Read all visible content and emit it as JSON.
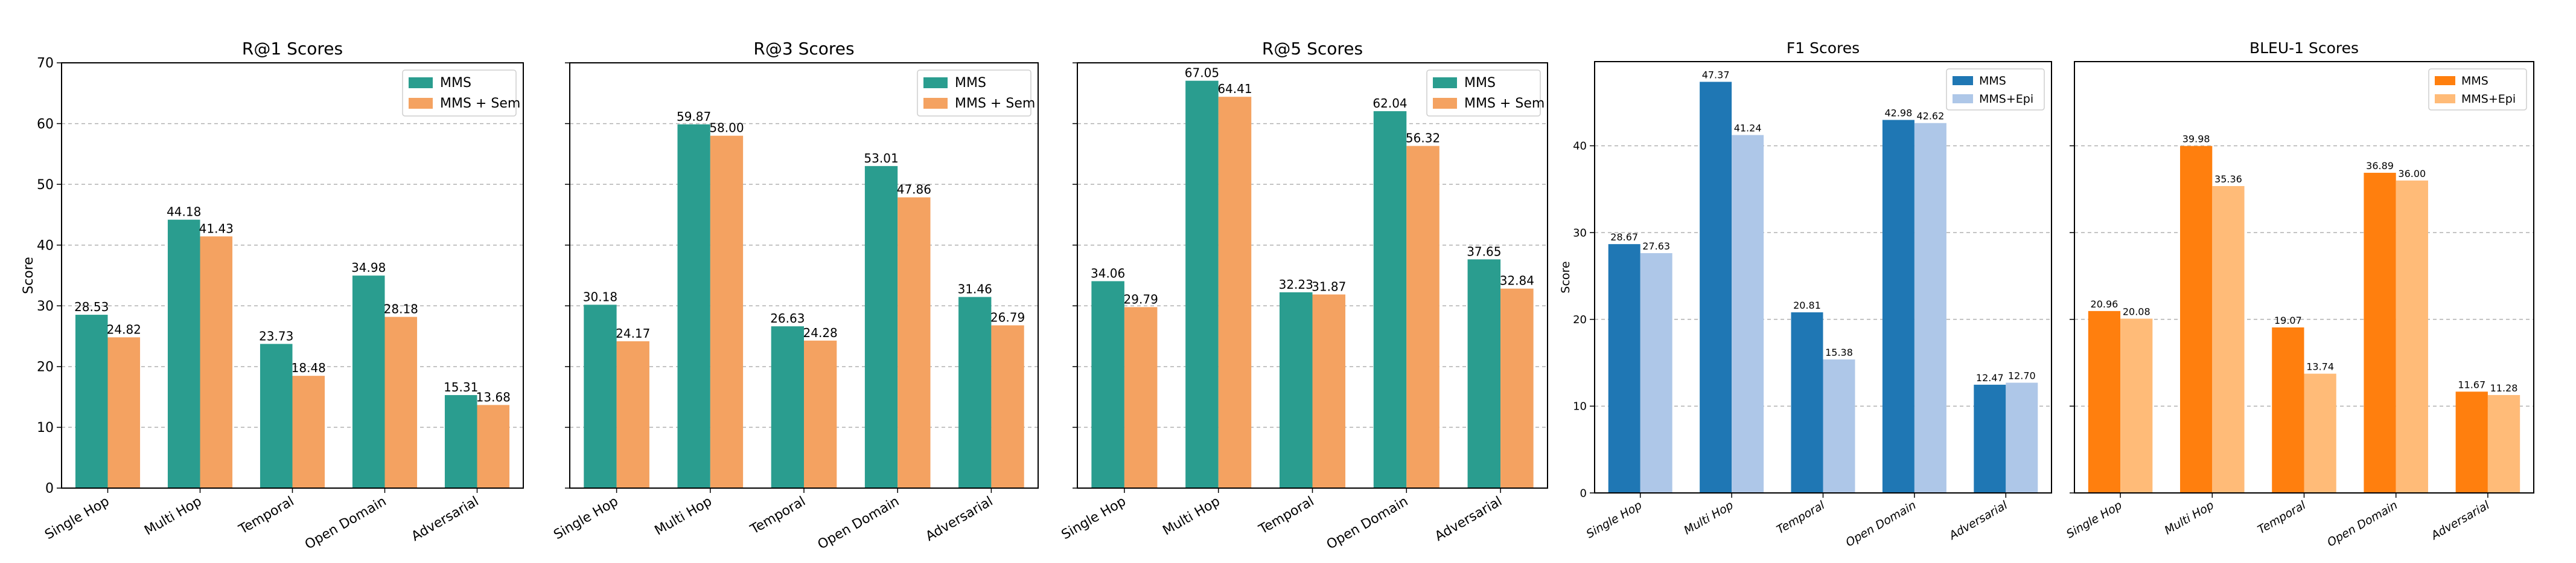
{
  "chart_data": [
    {
      "type": "bar",
      "title": "R@1 Scores",
      "xlabel": "",
      "ylabel": "Score",
      "ylim": [
        0,
        70
      ],
      "yticks": [
        0,
        10,
        20,
        30,
        40,
        50,
        60,
        70
      ],
      "grid": true,
      "legend": "top-right",
      "categories": [
        "Single Hop",
        "Multi Hop",
        "Temporal",
        "Open Domain",
        "Adversarial"
      ],
      "series": [
        {
          "name": "MMS",
          "color": "#2a9d8f",
          "values": [
            28.53,
            44.18,
            23.73,
            34.98,
            15.31
          ]
        },
        {
          "name": "MMS + Sem",
          "color": "#f4a261",
          "values": [
            24.82,
            41.43,
            18.48,
            28.18,
            13.68
          ]
        }
      ]
    },
    {
      "type": "bar",
      "title": "R@3 Scores",
      "xlabel": "",
      "ylabel": "",
      "ylim": [
        0,
        70
      ],
      "yticks": [
        0,
        10,
        20,
        30,
        40,
        50,
        60,
        70
      ],
      "grid": true,
      "legend": "top-right",
      "categories": [
        "Single Hop",
        "Multi Hop",
        "Temporal",
        "Open Domain",
        "Adversarial"
      ],
      "series": [
        {
          "name": "MMS",
          "color": "#2a9d8f",
          "values": [
            30.18,
            59.87,
            26.63,
            53.01,
            31.46
          ]
        },
        {
          "name": "MMS + Sem",
          "color": "#f4a261",
          "values": [
            24.17,
            58.0,
            24.28,
            47.86,
            26.79
          ]
        }
      ]
    },
    {
      "type": "bar",
      "title": "R@5 Scores",
      "xlabel": "",
      "ylabel": "",
      "ylim": [
        0,
        70
      ],
      "yticks": [
        0,
        10,
        20,
        30,
        40,
        50,
        60,
        70
      ],
      "grid": true,
      "legend": "top-right",
      "categories": [
        "Single Hop",
        "Multi Hop",
        "Temporal",
        "Open Domain",
        "Adversarial"
      ],
      "series": [
        {
          "name": "MMS",
          "color": "#2a9d8f",
          "values": [
            34.06,
            67.05,
            32.23,
            62.04,
            37.65
          ]
        },
        {
          "name": "MMS + Sem",
          "color": "#f4a261",
          "values": [
            29.79,
            64.41,
            31.87,
            56.32,
            32.84
          ]
        }
      ]
    },
    {
      "type": "bar",
      "title": "F1 Scores",
      "xlabel": "",
      "ylabel": "Score",
      "ylim": [
        0,
        49.7
      ],
      "yticks": [
        0,
        10,
        20,
        30,
        40
      ],
      "grid": true,
      "legend": "top-right",
      "categories": [
        "Single Hop",
        "Multi Hop",
        "Temporal",
        "Open Domain",
        "Adversarial"
      ],
      "series": [
        {
          "name": "MMS",
          "color": "#1f77b4",
          "values": [
            28.67,
            47.37,
            20.81,
            42.98,
            12.47
          ]
        },
        {
          "name": "MMS+Epi",
          "color": "#aec7e8",
          "values": [
            27.63,
            41.24,
            15.38,
            42.62,
            12.7
          ]
        }
      ]
    },
    {
      "type": "bar",
      "title": "BLEU-1 Scores",
      "xlabel": "",
      "ylabel": "",
      "ylim": [
        0,
        49.7
      ],
      "yticks": [
        0,
        10,
        20,
        30,
        40
      ],
      "grid": true,
      "legend": "top-right",
      "categories": [
        "Single Hop",
        "Multi Hop",
        "Temporal",
        "Open Domain",
        "Adversarial"
      ],
      "series": [
        {
          "name": "MMS",
          "color": "#ff7f0e",
          "values": [
            20.96,
            39.98,
            19.07,
            36.89,
            11.67
          ]
        },
        {
          "name": "MMS+Epi",
          "color": "#ffbb78",
          "values": [
            20.08,
            35.36,
            13.74,
            36.0,
            11.28
          ]
        }
      ]
    }
  ]
}
